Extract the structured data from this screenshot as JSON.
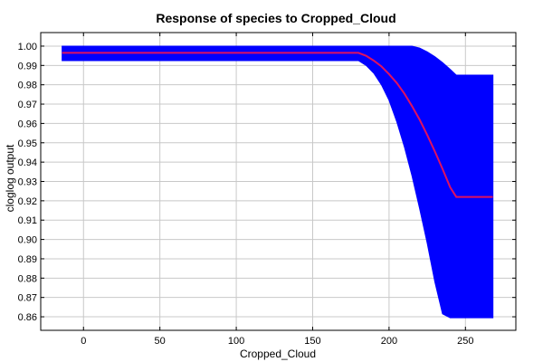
{
  "chart_data": {
    "type": "line",
    "title": "Response of species to Cropped_Cloud",
    "xlabel": "Cropped_Cloud",
    "ylabel": "cloglog output",
    "xlim": [
      -28,
      283
    ],
    "ylim": [
      0.853,
      1.007
    ],
    "xticks": [
      0,
      50,
      100,
      150,
      200,
      250
    ],
    "yticks": [
      0.86,
      0.87,
      0.88,
      0.89,
      0.9,
      0.91,
      0.92,
      0.93,
      0.94,
      0.95,
      0.96,
      0.97,
      0.98,
      0.99,
      1.0
    ],
    "ytick_labels": [
      "0.86",
      "0.87",
      "0.88",
      "0.89",
      "0.90",
      "0.91",
      "0.92",
      "0.93",
      "0.94",
      "0.95",
      "0.96",
      "0.97",
      "0.98",
      "0.99",
      "1.00"
    ],
    "grid": true,
    "series": [
      {
        "role": "mean",
        "color": "#e0115f",
        "x": [
          -14,
          180,
          185,
          190,
          195,
          200,
          205,
          210,
          215,
          220,
          225,
          230,
          235,
          240,
          244,
          268
        ],
        "y": [
          0.9965,
          0.9965,
          0.995,
          0.9925,
          0.9895,
          0.9855,
          0.981,
          0.9755,
          0.969,
          0.962,
          0.954,
          0.9455,
          0.9365,
          0.927,
          0.922,
          0.922
        ]
      },
      {
        "role": "band",
        "color": "#0000ff",
        "x": [
          -14,
          180,
          185,
          190,
          195,
          200,
          205,
          210,
          215,
          220,
          225,
          230,
          235,
          240,
          244,
          268
        ],
        "upper": [
          1.0,
          1.0,
          1.0,
          1.0,
          1.0,
          1.0,
          1.0,
          1.0,
          1.0,
          0.999,
          0.997,
          0.9945,
          0.9915,
          0.988,
          0.985,
          0.985
        ],
        "lower": [
          0.9925,
          0.9925,
          0.99,
          0.986,
          0.98,
          0.972,
          0.961,
          0.948,
          0.933,
          0.916,
          0.898,
          0.878,
          0.8615,
          0.8595,
          0.8595,
          0.8595
        ]
      }
    ]
  }
}
